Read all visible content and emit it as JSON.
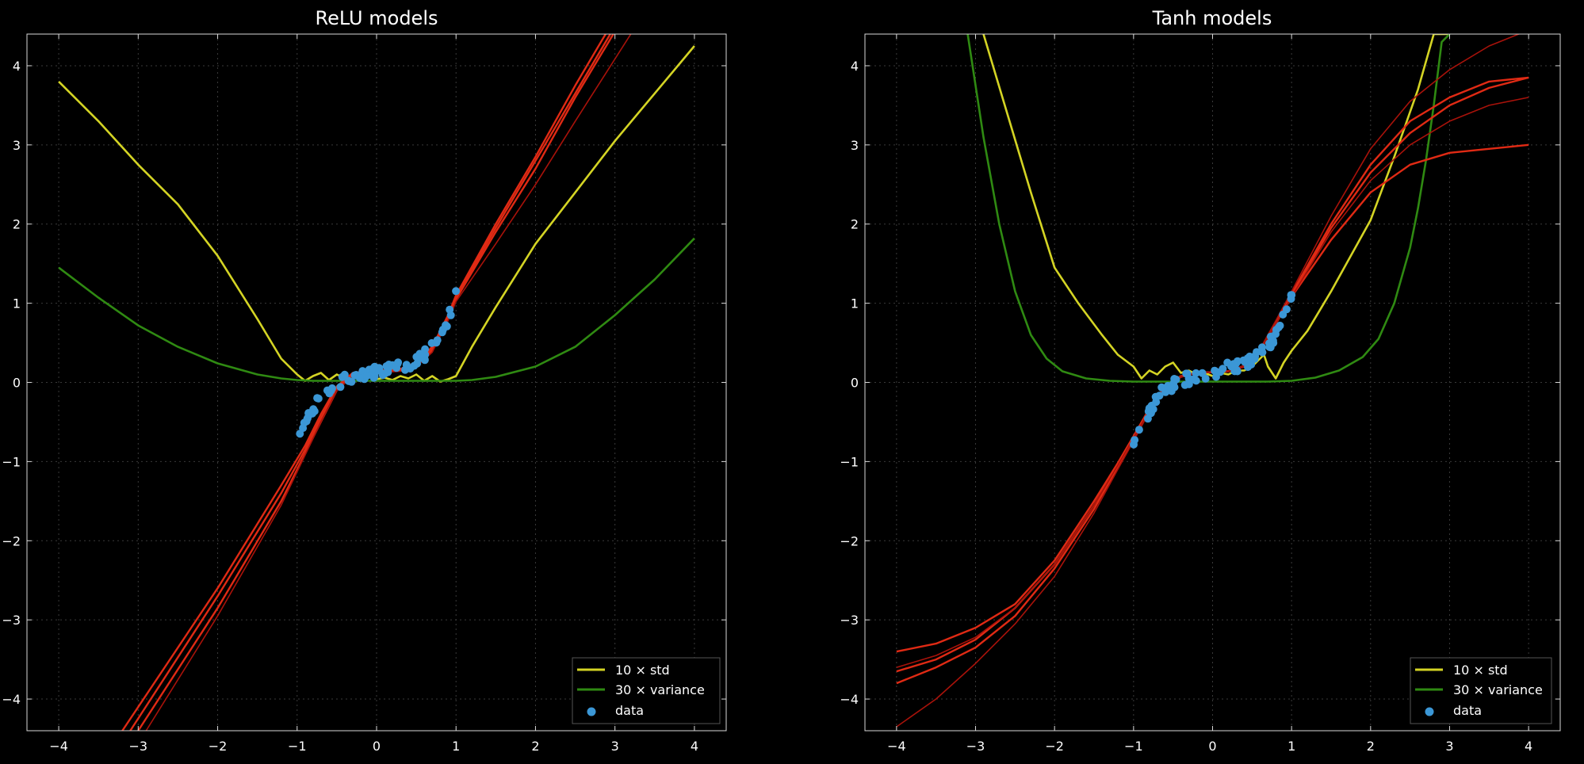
{
  "colors": {
    "background": "#000000",
    "axes_frame": "#d9d9d9",
    "grid": "#3a3a3a",
    "std": "#d4d424",
    "variance": "#2f8a12",
    "model": "#e02a14",
    "model_faint": "#a8120a",
    "data": "#3b97d6"
  },
  "legend": {
    "std_label": "10 × std",
    "variance_label": "30 × variance",
    "data_label": "data",
    "placement": "lower-right"
  },
  "chart_data": [
    {
      "type": "line",
      "title": "ReLU models",
      "xlabel": "",
      "ylabel": "",
      "xlim": [
        -4.4,
        4.4
      ],
      "ylim": [
        -4.4,
        4.4
      ],
      "xticks": [
        -4,
        -3,
        -2,
        -1,
        0,
        1,
        2,
        3,
        4
      ],
      "yticks": [
        -4,
        -3,
        -2,
        -1,
        0,
        1,
        2,
        3,
        4
      ],
      "grid": true,
      "legend_placement": "lower-right",
      "series": [
        {
          "name": "10 × std",
          "color": "std",
          "x": [
            -4,
            -3.5,
            -3,
            -2.5,
            -2,
            -1.5,
            -1.2,
            -1.0,
            -0.9,
            -0.8,
            -0.7,
            -0.6,
            -0.5,
            -0.4,
            -0.3,
            -0.2,
            -0.1,
            0.0,
            0.1,
            0.2,
            0.3,
            0.4,
            0.5,
            0.6,
            0.7,
            0.8,
            0.9,
            1.0,
            1.2,
            1.5,
            2.0,
            2.5,
            3.0,
            3.5,
            4.0
          ],
          "y": [
            3.8,
            3.3,
            2.75,
            2.25,
            1.6,
            0.8,
            0.3,
            0.1,
            0.02,
            0.08,
            0.12,
            0.03,
            0.1,
            0.05,
            0.08,
            0.04,
            0.07,
            0.04,
            0.06,
            0.03,
            0.08,
            0.05,
            0.1,
            0.02,
            0.08,
            0.01,
            0.04,
            0.08,
            0.45,
            0.95,
            1.75,
            2.4,
            3.05,
            3.65,
            4.25
          ]
        },
        {
          "name": "30 × variance",
          "color": "variance",
          "x": [
            -4,
            -3.5,
            -3,
            -2.5,
            -2,
            -1.5,
            -1.2,
            -1.0,
            -0.8,
            -0.5,
            -0.2,
            0.0,
            0.2,
            0.5,
            0.8,
            1.0,
            1.2,
            1.5,
            2.0,
            2.5,
            3.0,
            3.5,
            4.0
          ],
          "y": [
            1.45,
            1.07,
            0.72,
            0.45,
            0.24,
            0.1,
            0.05,
            0.03,
            0.02,
            0.02,
            0.02,
            0.02,
            0.02,
            0.02,
            0.02,
            0.02,
            0.03,
            0.07,
            0.2,
            0.45,
            0.85,
            1.3,
            1.82
          ]
        },
        {
          "name": "",
          "color": "model",
          "x": [
            -3.2,
            -2,
            -1.2,
            -0.9,
            -0.7,
            -0.5,
            -0.3,
            0,
            0.3,
            0.5,
            0.7,
            0.9,
            1.0,
            1.5,
            2.0,
            2.5,
            3.0
          ],
          "y": [
            -4.4,
            -2.6,
            -1.3,
            -0.8,
            -0.4,
            -0.05,
            0.12,
            0.15,
            0.17,
            0.25,
            0.45,
            0.85,
            1.1,
            2.0,
            2.85,
            3.75,
            4.6
          ]
        },
        {
          "name": "",
          "color": "model",
          "x": [
            -3.1,
            -2,
            -1.2,
            -0.9,
            -0.7,
            -0.5,
            -0.3,
            0,
            0.3,
            0.5,
            0.7,
            0.9,
            1.0,
            1.5,
            2.0,
            2.5,
            3.0
          ],
          "y": [
            -4.4,
            -2.7,
            -1.4,
            -0.85,
            -0.45,
            -0.08,
            0.1,
            0.14,
            0.16,
            0.24,
            0.42,
            0.82,
            1.08,
            1.95,
            2.8,
            3.65,
            4.5
          ]
        },
        {
          "name": "",
          "color": "model",
          "x": [
            -3.0,
            -2,
            -1.2,
            -0.9,
            -0.7,
            -0.5,
            -0.3,
            0,
            0.3,
            0.5,
            0.7,
            0.9,
            1.0,
            1.5,
            2.0,
            2.5,
            3.1
          ],
          "y": [
            -4.4,
            -2.85,
            -1.5,
            -0.9,
            -0.5,
            -0.1,
            0.09,
            0.13,
            0.15,
            0.22,
            0.4,
            0.8,
            1.05,
            1.9,
            2.7,
            3.6,
            4.6
          ]
        },
        {
          "name": "",
          "color": "model_faint",
          "x": [
            -2.9,
            -2,
            -1.2,
            -0.9,
            -0.7,
            -0.5,
            -0.3,
            0,
            0.3,
            0.5,
            0.7,
            0.9,
            1.0,
            1.5,
            2.0,
            2.5,
            3.2
          ],
          "y": [
            -4.4,
            -2.95,
            -1.55,
            -0.92,
            -0.5,
            -0.1,
            0.08,
            0.12,
            0.14,
            0.2,
            0.38,
            0.78,
            1.02,
            1.75,
            2.5,
            3.3,
            4.4
          ]
        }
      ],
      "scatter": {
        "name": "data",
        "color": "data",
        "x_min": -1.0,
        "x_max": 1.0,
        "count": 80
      }
    },
    {
      "type": "line",
      "title": "Tanh models",
      "xlabel": "",
      "ylabel": "",
      "xlim": [
        -4.4,
        4.4
      ],
      "ylim": [
        -4.4,
        4.4
      ],
      "xticks": [
        -4,
        -3,
        -2,
        -1,
        0,
        1,
        2,
        3,
        4
      ],
      "yticks": [
        -4,
        -3,
        -2,
        -1,
        0,
        1,
        2,
        3,
        4
      ],
      "grid": true,
      "legend_placement": "lower-right",
      "series": [
        {
          "name": "10 × std",
          "color": "std",
          "x": [
            -2.9,
            -2.6,
            -2.3,
            -2.0,
            -1.7,
            -1.4,
            -1.2,
            -1.0,
            -0.9,
            -0.8,
            -0.7,
            -0.6,
            -0.5,
            -0.4,
            -0.3,
            -0.2,
            -0.1,
            0.0,
            0.1,
            0.2,
            0.3,
            0.4,
            0.5,
            0.6,
            0.65,
            0.7,
            0.8,
            0.9,
            1.0,
            1.2,
            1.5,
            2.0,
            2.3,
            2.6,
            2.8,
            3.0
          ],
          "y": [
            4.4,
            3.4,
            2.4,
            1.45,
            1.0,
            0.6,
            0.35,
            0.2,
            0.05,
            0.15,
            0.1,
            0.2,
            0.25,
            0.12,
            0.15,
            0.1,
            0.12,
            0.08,
            0.12,
            0.1,
            0.15,
            0.15,
            0.2,
            0.3,
            0.35,
            0.2,
            0.05,
            0.25,
            0.4,
            0.65,
            1.15,
            2.05,
            2.85,
            3.7,
            4.4,
            4.4
          ]
        },
        {
          "name": "30 × variance",
          "color": "variance",
          "x": [
            -3.1,
            -2.9,
            -2.7,
            -2.5,
            -2.3,
            -2.1,
            -1.9,
            -1.6,
            -1.3,
            -1.0,
            -0.7,
            0.0,
            0.7,
            1.0,
            1.3,
            1.6,
            1.9,
            2.1,
            2.3,
            2.5,
            2.6,
            2.7,
            2.8,
            2.9,
            3.0
          ],
          "y": [
            4.4,
            3.1,
            2.0,
            1.15,
            0.6,
            0.3,
            0.14,
            0.05,
            0.02,
            0.01,
            0.01,
            0.01,
            0.01,
            0.02,
            0.06,
            0.15,
            0.32,
            0.55,
            1.0,
            1.7,
            2.2,
            2.8,
            3.5,
            4.3,
            4.4
          ]
        },
        {
          "name": "",
          "color": "model",
          "x": [
            -4,
            -3.5,
            -3,
            -2.5,
            -2,
            -1.5,
            -1.2,
            -1.0,
            -0.8,
            -0.6,
            -0.4,
            -0.2,
            0,
            0.2,
            0.4,
            0.6,
            0.8,
            1.0,
            1.5,
            2.0,
            2.5,
            3.0,
            3.5,
            4.0
          ],
          "y": [
            -3.65,
            -3.5,
            -3.25,
            -2.85,
            -2.3,
            -1.55,
            -1.05,
            -0.7,
            -0.35,
            -0.05,
            0.08,
            0.12,
            0.13,
            0.14,
            0.2,
            0.4,
            0.75,
            1.1,
            1.95,
            2.65,
            3.15,
            3.5,
            3.72,
            3.85
          ]
        },
        {
          "name": "",
          "color": "model",
          "x": [
            -4,
            -3.5,
            -3,
            -2.5,
            -2,
            -1.5,
            -1.2,
            -1.0,
            -0.8,
            -0.6,
            -0.4,
            -0.2,
            0,
            0.2,
            0.4,
            0.6,
            0.8,
            1.0,
            1.5,
            2.0,
            2.5,
            3.0,
            3.5,
            4.0
          ],
          "y": [
            -3.4,
            -3.3,
            -3.1,
            -2.8,
            -2.25,
            -1.5,
            -1.02,
            -0.68,
            -0.33,
            -0.05,
            0.08,
            0.12,
            0.13,
            0.14,
            0.2,
            0.4,
            0.74,
            1.08,
            1.8,
            2.4,
            2.75,
            2.9,
            2.95,
            3.0
          ]
        },
        {
          "name": "",
          "color": "model",
          "x": [
            -4,
            -3.5,
            -3,
            -2.5,
            -2,
            -1.5,
            -1.2,
            -1.0,
            -0.8,
            -0.6,
            -0.4,
            -0.2,
            0,
            0.2,
            0.4,
            0.6,
            0.8,
            1.0,
            1.5,
            2.0,
            2.5,
            3.0,
            3.5,
            4.0
          ],
          "y": [
            -3.8,
            -3.6,
            -3.35,
            -2.95,
            -2.35,
            -1.6,
            -1.07,
            -0.72,
            -0.36,
            -0.06,
            0.07,
            0.12,
            0.13,
            0.14,
            0.21,
            0.41,
            0.76,
            1.12,
            2.0,
            2.75,
            3.3,
            3.6,
            3.8,
            3.85
          ]
        },
        {
          "name": "",
          "color": "model_faint",
          "x": [
            -4,
            -3.5,
            -3,
            -2.5,
            -2,
            -1.5,
            -1.2,
            -1.0,
            -0.8,
            -0.6,
            -0.4,
            -0.2,
            0,
            0.2,
            0.4,
            0.6,
            0.8,
            1.0,
            1.5,
            2.0,
            2.5,
            3.0,
            3.5,
            4.0
          ],
          "y": [
            -4.35,
            -4.0,
            -3.55,
            -3.05,
            -2.45,
            -1.65,
            -1.1,
            -0.74,
            -0.37,
            -0.06,
            0.07,
            0.12,
            0.13,
            0.14,
            0.21,
            0.42,
            0.78,
            1.15,
            2.1,
            2.95,
            3.55,
            3.95,
            4.25,
            4.45
          ]
        },
        {
          "name": "",
          "color": "model_faint",
          "x": [
            -4,
            -3.5,
            -3,
            -2.5,
            -2,
            -1.5,
            -1.2,
            -1.0,
            -0.8,
            -0.6,
            -0.4,
            -0.2,
            0,
            0.2,
            0.4,
            0.6,
            0.8,
            1.0,
            1.5,
            2.0,
            2.5,
            3.0,
            3.5,
            4.0
          ],
          "y": [
            -3.6,
            -3.45,
            -3.22,
            -2.85,
            -2.3,
            -1.55,
            -1.05,
            -0.7,
            -0.35,
            -0.05,
            0.08,
            0.12,
            0.13,
            0.14,
            0.2,
            0.4,
            0.74,
            1.08,
            1.9,
            2.55,
            3.0,
            3.3,
            3.5,
            3.6
          ]
        }
      ],
      "scatter": {
        "name": "data",
        "color": "data",
        "x_min": -1.0,
        "x_max": 1.0,
        "count": 80
      }
    }
  ]
}
